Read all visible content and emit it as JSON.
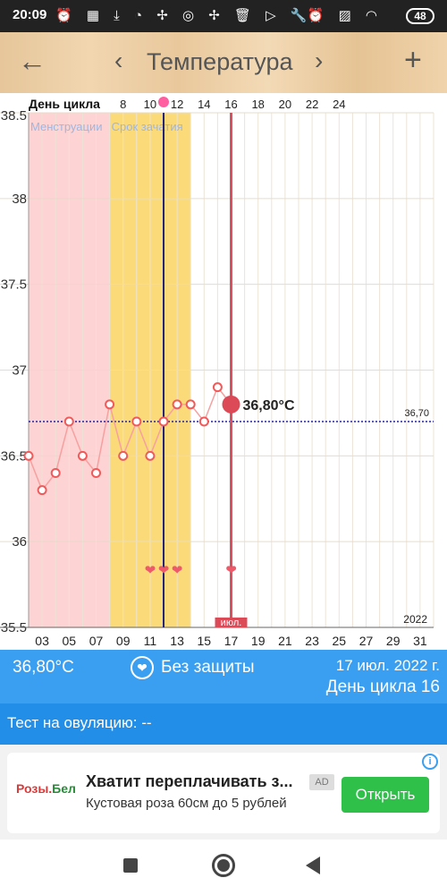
{
  "status_bar": {
    "time": "20:09",
    "battery": "48",
    "left_icons": [
      "alarm-icon",
      "app-icon",
      "download-icon",
      "chat-icon",
      "fan-icon",
      "instagram-icon",
      "fan-icon",
      "trash-icon",
      "play-icon",
      "wrench-icon"
    ],
    "right_icons": [
      "alarm-icon",
      "signal-icon",
      "wifi-icon"
    ]
  },
  "app_bar": {
    "title": "Температура",
    "back_icon": "arrow-left-icon",
    "prev_icon": "chevron-left-icon",
    "next_icon": "chevron-right-icon",
    "add_icon": "plus-icon"
  },
  "chart_data": {
    "type": "line",
    "title": "",
    "top_axis_label": "День цикла",
    "top_ticks": [
      "8",
      "10",
      "12",
      "14",
      "16",
      "18",
      "20",
      "22",
      "24"
    ],
    "top_tick_days": [
      8,
      10,
      12,
      14,
      16,
      18,
      20,
      22,
      24
    ],
    "x_labels": [
      "03",
      "05",
      "07",
      "09",
      "11",
      "13",
      "15",
      "17",
      "19",
      "21",
      "23",
      "25",
      "27",
      "29",
      "31"
    ],
    "x_label_days": [
      3,
      5,
      7,
      9,
      11,
      13,
      15,
      17,
      19,
      21,
      23,
      25,
      27,
      29,
      31
    ],
    "xlim": [
      2,
      32
    ],
    "y_ticks": [
      "35.5",
      "36",
      "36.5",
      "37",
      "37.5",
      "38",
      "38.5"
    ],
    "y_tick_values": [
      35.5,
      36,
      36.5,
      37,
      37.5,
      38,
      38.5
    ],
    "ylim": [
      35.5,
      38.5
    ],
    "year_label": "2022",
    "month_label": "июл.",
    "zones": [
      {
        "name": "Менструации",
        "from": 2,
        "to": 8,
        "color": "#fdd3d3"
      },
      {
        "name": "Срок зачатия",
        "from": 8,
        "to": 14,
        "color": "#fbda7a"
      }
    ],
    "coverline": {
      "value": 36.7,
      "label": "36,70",
      "color": "#2222aa"
    },
    "ovulation_day": 12,
    "current_day": 17,
    "current_value": 36.8,
    "current_label": "36,80°C",
    "heart_days": [
      11,
      12,
      13,
      17
    ],
    "series": [
      {
        "x": [
          2,
          3,
          4,
          5,
          6,
          7,
          8,
          9,
          10,
          11,
          12,
          13,
          14,
          15,
          16,
          17
        ],
        "values": [
          36.5,
          36.3,
          36.4,
          36.7,
          36.5,
          36.4,
          36.8,
          36.5,
          36.7,
          36.5,
          36.7,
          36.8,
          36.8,
          36.7,
          36.9,
          36.8
        ],
        "color": "#f05a5a"
      }
    ],
    "grid": true
  },
  "info": {
    "temperature": "36,80°C",
    "protection": "Без защиты",
    "date": "17 июл. 2022 г.",
    "cycle_day": "День цикла 16"
  },
  "ovulation_test": {
    "label": "Тест на овуляцию: --"
  },
  "ad": {
    "logo_main": "Розы",
    "logo_dot": ".",
    "logo_brand": "Бел",
    "headline": "Хватит переплачивать з...",
    "subtitle": "Кустовая роза 60см до 5 рублей",
    "badge": "AD",
    "button": "Открыть",
    "info_icon": "i"
  }
}
